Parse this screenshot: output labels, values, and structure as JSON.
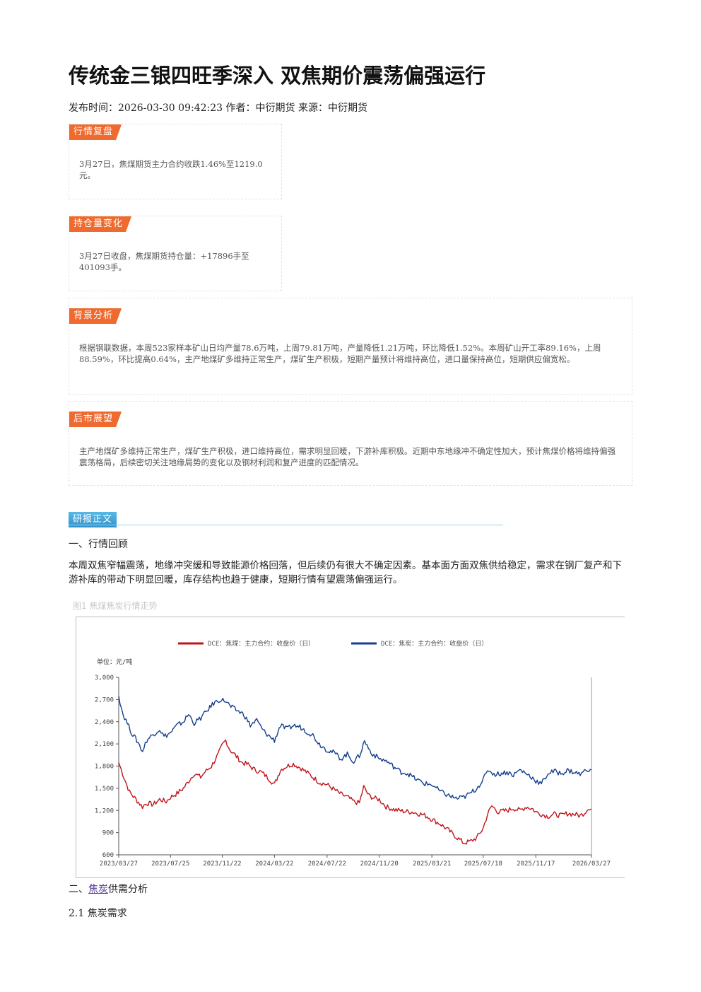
{
  "article": {
    "title": "传统金三银四旺季深入 双焦期价震荡偏强运行",
    "meta": "发布时间：2026-03-30 09:42:23 作者：中衍期货 来源：中衍期货"
  },
  "boxes": {
    "review": {
      "tag": "行情复盘",
      "text": "3月27日，焦煤期货主力合约收跌1.46%至1219.0元。"
    },
    "position": {
      "tag": "持仓量变化",
      "text": "3月27日收盘，焦煤期货持仓量：+17896手至401093手。"
    },
    "background": {
      "tag": "背景分析",
      "text": "根据钢联数据，本周523家样本矿山日均产量78.6万吨，上周79.81万吨，产量降低1.21万吨，环比降低1.52%。本周矿山开工率89.16%，上周88.59%，环比提高0.64%，主产地煤矿多维持正常生产，煤矿生产积极，短期产量预计将维持高位，进口量保持高位，短期供应偏宽松。"
    },
    "outlook": {
      "tag": "后市展望",
      "text": "主产地煤矿多维持正常生产，煤矿生产积极，进口维持高位，需求明显回暖，下游补库积极。近期中东地缘冲不确定性加大，预计焦煤价格将维持偏强震荡格局，后续密切关注地缘局势的变化以及钢材利润和复产进度的匹配情况。"
    }
  },
  "report": {
    "section_tag": "研报正文",
    "heading1": "一、行情回顾",
    "paragraph": "本周双焦窄幅震荡，地缘冲突缓和导致能源价格回落，但后续仍有很大不确定因素。基本面方面双焦供给稳定，需求在钢厂复产和下游补库的带动下明显回暖，库存结构也趋于健康，短期行情有望震荡偏强运行。",
    "figure_caption": "图1 焦煤焦炭行情走势",
    "heading2_prefix": "二、",
    "heading2_link": "焦炭",
    "heading2_suffix": "供需分析",
    "heading3": "2.1 焦炭需求"
  },
  "chart_data": {
    "type": "line",
    "ylabel": "单位：元/吨",
    "ylim": [
      600,
      3000
    ],
    "yticks": [
      "3,000",
      "2,700",
      "2,400",
      "2,100",
      "1,800",
      "1,500",
      "1,200",
      "900",
      "600"
    ],
    "x_ticks": [
      "2023/03/27",
      "2023/07/25",
      "2023/11/22",
      "2024/03/22",
      "2024/07/22",
      "2024/11/20",
      "2025/03/21",
      "2025/07/18",
      "2025/11/17",
      "2026/03/27"
    ],
    "x_tick_values": [
      0,
      120,
      240,
      361,
      483,
      604,
      726,
      845,
      967,
      1096
    ],
    "x_range": [
      0,
      1096
    ],
    "colors": {
      "coal": "#c0141b",
      "coke": "#143f8c"
    },
    "series": [
      {
        "name": "DCE：焦煤：主力合约：收盘价（日）",
        "color_key": "coal",
        "points": [
          [
            0,
            1850
          ],
          [
            12,
            1650
          ],
          [
            25,
            1450
          ],
          [
            40,
            1350
          ],
          [
            55,
            1250
          ],
          [
            65,
            1300
          ],
          [
            80,
            1280
          ],
          [
            95,
            1350
          ],
          [
            110,
            1320
          ],
          [
            120,
            1380
          ],
          [
            135,
            1430
          ],
          [
            150,
            1500
          ],
          [
            165,
            1620
          ],
          [
            175,
            1700
          ],
          [
            190,
            1650
          ],
          [
            200,
            1720
          ],
          [
            215,
            1800
          ],
          [
            230,
            1950
          ],
          [
            240,
            2080
          ],
          [
            248,
            2150
          ],
          [
            258,
            2020
          ],
          [
            270,
            1950
          ],
          [
            285,
            1850
          ],
          [
            300,
            1820
          ],
          [
            315,
            1750
          ],
          [
            330,
            1720
          ],
          [
            345,
            1650
          ],
          [
            361,
            1550
          ],
          [
            375,
            1750
          ],
          [
            390,
            1800
          ],
          [
            405,
            1830
          ],
          [
            420,
            1780
          ],
          [
            435,
            1720
          ],
          [
            450,
            1650
          ],
          [
            465,
            1580
          ],
          [
            483,
            1550
          ],
          [
            500,
            1480
          ],
          [
            515,
            1420
          ],
          [
            530,
            1380
          ],
          [
            545,
            1320
          ],
          [
            558,
            1300
          ],
          [
            568,
            1520
          ],
          [
            580,
            1400
          ],
          [
            595,
            1360
          ],
          [
            604,
            1350
          ],
          [
            620,
            1250
          ],
          [
            640,
            1210
          ],
          [
            660,
            1190
          ],
          [
            680,
            1180
          ],
          [
            700,
            1150
          ],
          [
            715,
            1120
          ],
          [
            726,
            1080
          ],
          [
            745,
            1020
          ],
          [
            765,
            930
          ],
          [
            785,
            830
          ],
          [
            800,
            760
          ],
          [
            815,
            780
          ],
          [
            830,
            830
          ],
          [
            845,
            960
          ],
          [
            855,
            1150
          ],
          [
            865,
            1260
          ],
          [
            880,
            1180
          ],
          [
            900,
            1200
          ],
          [
            915,
            1230
          ],
          [
            930,
            1200
          ],
          [
            945,
            1250
          ],
          [
            960,
            1220
          ],
          [
            967,
            1180
          ],
          [
            980,
            1150
          ],
          [
            995,
            1120
          ],
          [
            1010,
            1150
          ],
          [
            1025,
            1130
          ],
          [
            1040,
            1160
          ],
          [
            1055,
            1150
          ],
          [
            1070,
            1130
          ],
          [
            1080,
            1170
          ],
          [
            1090,
            1240
          ],
          [
            1096,
            1220
          ]
        ]
      },
      {
        "name": "DCE：焦炭：主力合约：收盘价（日）",
        "color_key": "coke",
        "points": [
          [
            0,
            2750
          ],
          [
            10,
            2500
          ],
          [
            20,
            2380
          ],
          [
            30,
            2250
          ],
          [
            45,
            2120
          ],
          [
            55,
            2000
          ],
          [
            65,
            2150
          ],
          [
            80,
            2230
          ],
          [
            95,
            2300
          ],
          [
            105,
            2200
          ],
          [
            120,
            2250
          ],
          [
            135,
            2350
          ],
          [
            150,
            2400
          ],
          [
            162,
            2500
          ],
          [
            175,
            2380
          ],
          [
            190,
            2450
          ],
          [
            205,
            2550
          ],
          [
            220,
            2650
          ],
          [
            235,
            2700
          ],
          [
            248,
            2680
          ],
          [
            260,
            2600
          ],
          [
            275,
            2550
          ],
          [
            290,
            2500
          ],
          [
            305,
            2350
          ],
          [
            320,
            2420
          ],
          [
            335,
            2280
          ],
          [
            350,
            2200
          ],
          [
            361,
            2150
          ],
          [
            375,
            2350
          ],
          [
            390,
            2300
          ],
          [
            405,
            2350
          ],
          [
            420,
            2330
          ],
          [
            435,
            2270
          ],
          [
            450,
            2220
          ],
          [
            465,
            2100
          ],
          [
            483,
            2020
          ],
          [
            500,
            1980
          ],
          [
            515,
            1900
          ],
          [
            530,
            1960
          ],
          [
            545,
            1860
          ],
          [
            558,
            1940
          ],
          [
            570,
            2140
          ],
          [
            585,
            1980
          ],
          [
            604,
            1900
          ],
          [
            620,
            1870
          ],
          [
            640,
            1780
          ],
          [
            655,
            1720
          ],
          [
            670,
            1700
          ],
          [
            690,
            1620
          ],
          [
            710,
            1560
          ],
          [
            726,
            1550
          ],
          [
            745,
            1460
          ],
          [
            765,
            1400
          ],
          [
            785,
            1360
          ],
          [
            800,
            1380
          ],
          [
            815,
            1430
          ],
          [
            830,
            1500
          ],
          [
            845,
            1620
          ],
          [
            858,
            1750
          ],
          [
            870,
            1690
          ],
          [
            885,
            1700
          ],
          [
            900,
            1720
          ],
          [
            915,
            1680
          ],
          [
            930,
            1750
          ],
          [
            945,
            1700
          ],
          [
            960,
            1640
          ],
          [
            967,
            1600
          ],
          [
            980,
            1560
          ],
          [
            995,
            1700
          ],
          [
            1010,
            1730
          ],
          [
            1025,
            1700
          ],
          [
            1040,
            1740
          ],
          [
            1055,
            1720
          ],
          [
            1070,
            1690
          ],
          [
            1080,
            1730
          ],
          [
            1090,
            1760
          ],
          [
            1096,
            1750
          ]
        ]
      }
    ]
  }
}
